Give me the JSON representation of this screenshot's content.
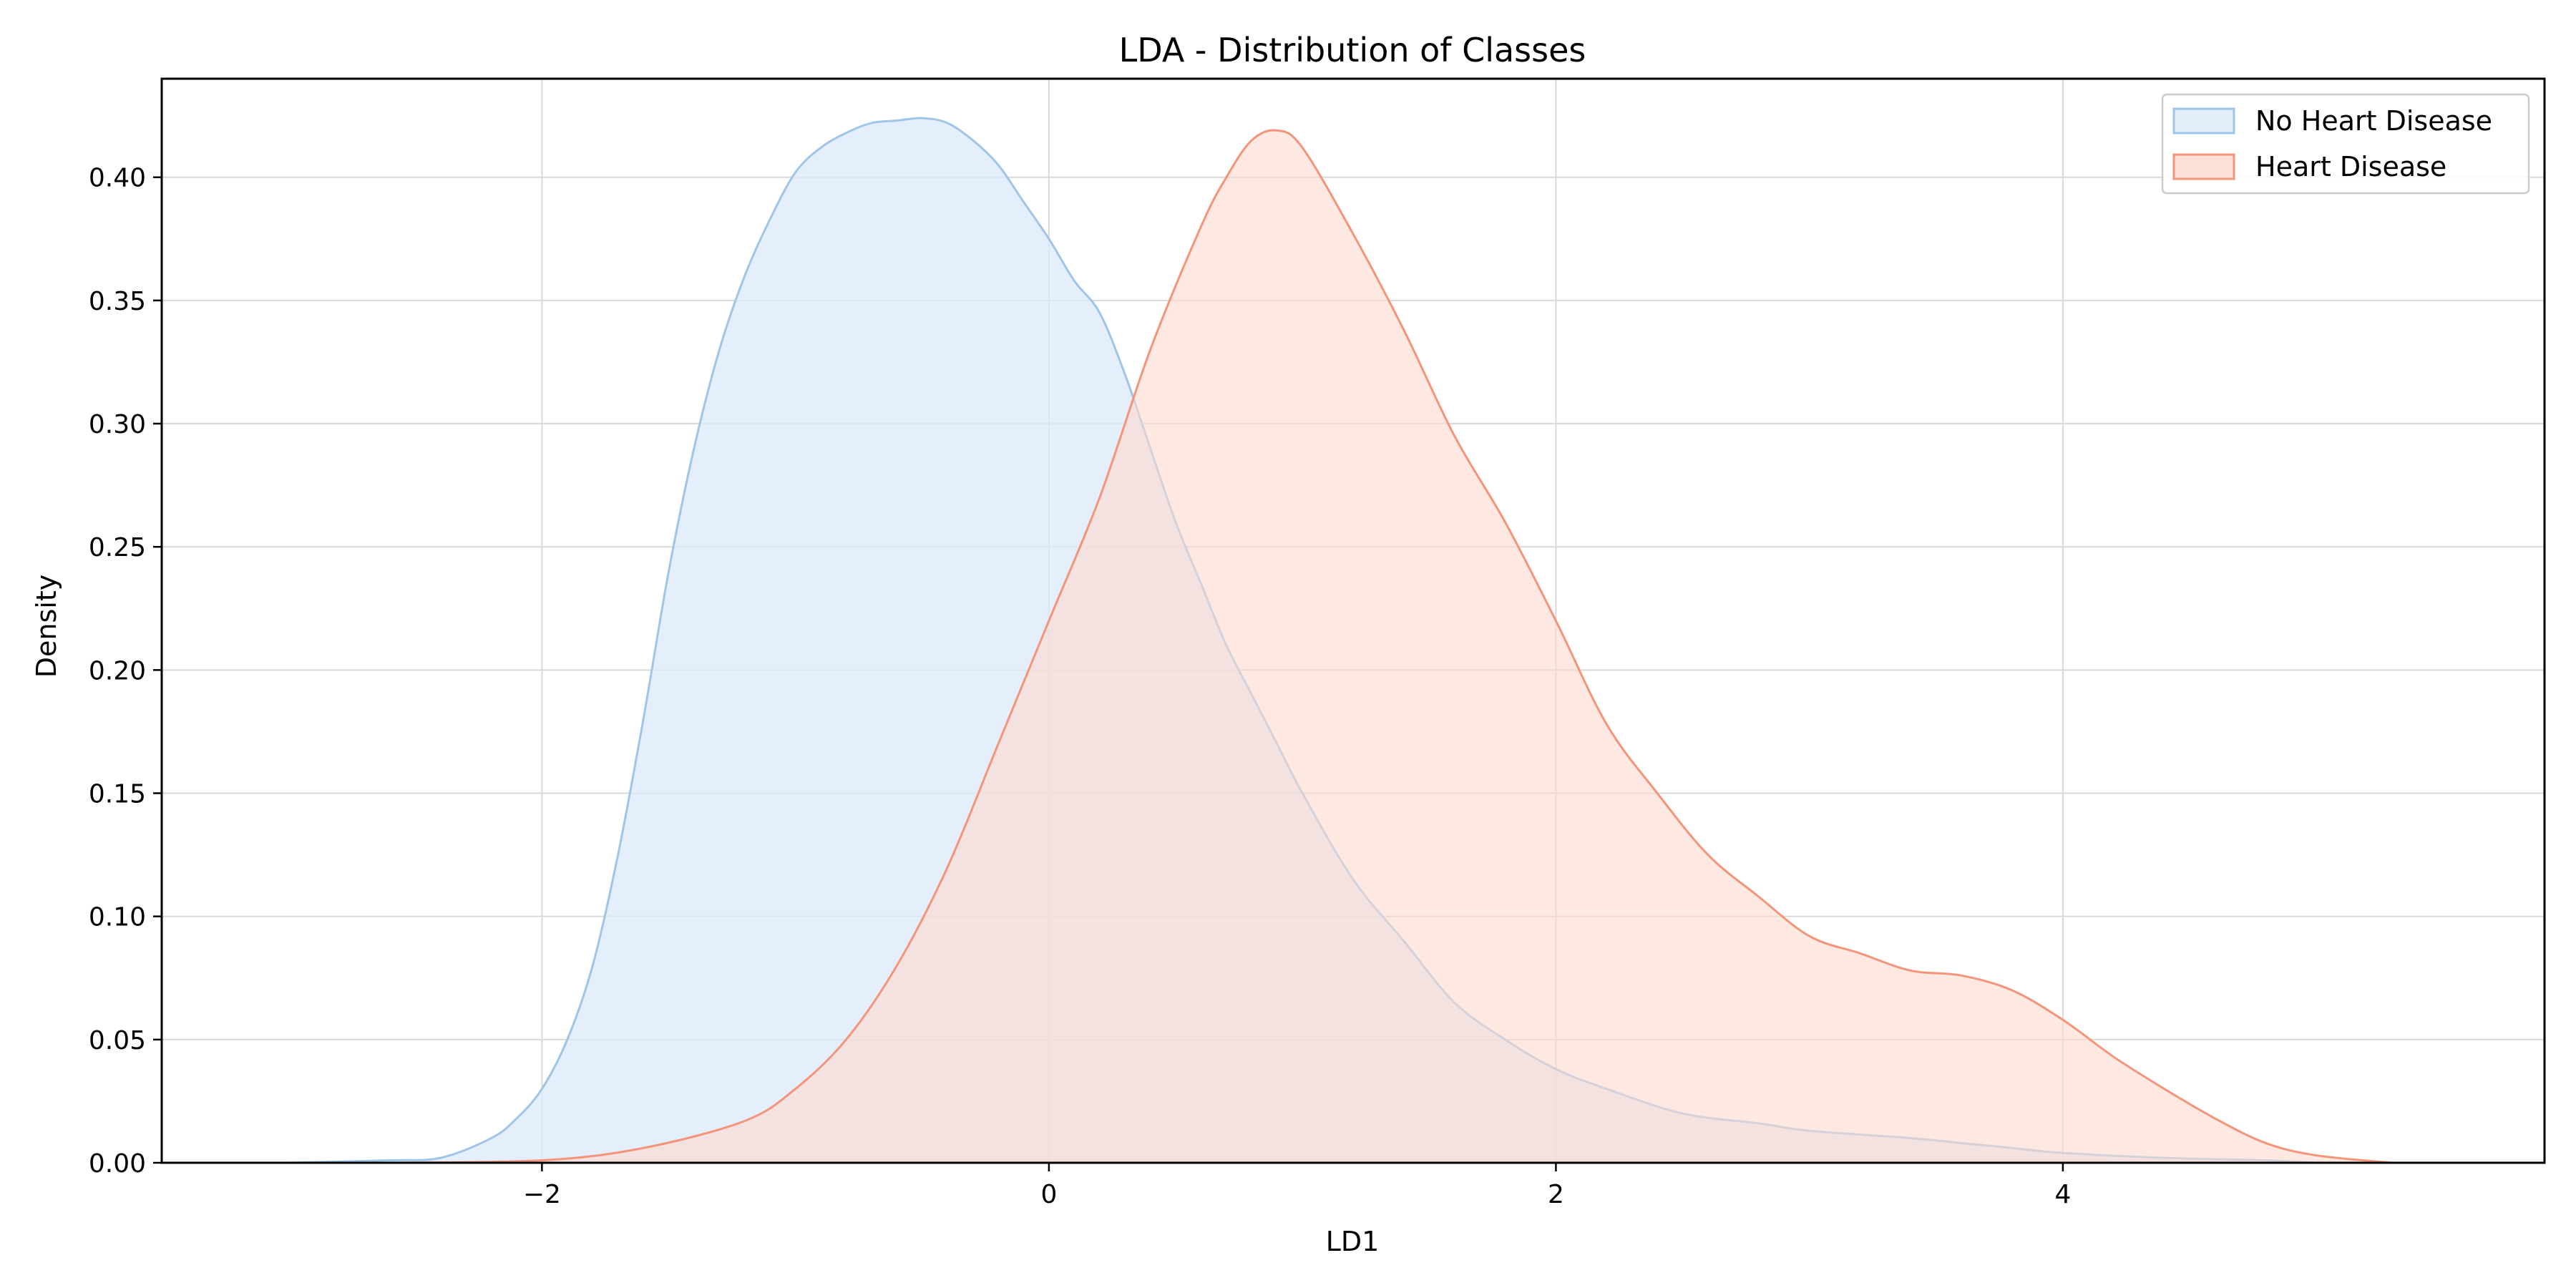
{
  "chart_data": {
    "type": "area",
    "title": "LDA - Distribution of Classes",
    "xlabel": "LD1",
    "ylabel": "Density",
    "xlim": [
      -3.5,
      5.9
    ],
    "ylim": [
      0,
      0.44
    ],
    "xticks": [
      -2,
      0,
      2,
      4
    ],
    "xtick_labels": [
      "−2",
      "0",
      "2",
      "4"
    ],
    "yticks": [
      0,
      0.05,
      0.1,
      0.15,
      0.2,
      0.25,
      0.3,
      0.35,
      0.4
    ],
    "ytick_labels": [
      "0.00",
      "0.05",
      "0.10",
      "0.15",
      "0.20",
      "0.25",
      "0.30",
      "0.35",
      "0.40"
    ],
    "grid": true,
    "legend_position": "top-right",
    "series": [
      {
        "name": "No Heart Disease",
        "line_color": "#9fc5e8",
        "fill_color": "#dceaf9",
        "x": [
          -3.0,
          -2.6,
          -2.4,
          -2.2,
          -2.1,
          -2.0,
          -1.9,
          -1.8,
          -1.7,
          -1.6,
          -1.5,
          -1.4,
          -1.3,
          -1.2,
          -1.1,
          -1.0,
          -0.9,
          -0.8,
          -0.7,
          -0.6,
          -0.5,
          -0.4,
          -0.3,
          -0.2,
          -0.1,
          0.0,
          0.1,
          0.2,
          0.3,
          0.4,
          0.5,
          0.6,
          0.7,
          0.8,
          0.9,
          1.0,
          1.2,
          1.4,
          1.6,
          1.8,
          2.0,
          2.2,
          2.5,
          2.8,
          3.0,
          3.4,
          3.6,
          3.8,
          4.0,
          4.4,
          4.8,
          5.0
        ],
        "y": [
          0.0,
          0.001,
          0.002,
          0.01,
          0.018,
          0.03,
          0.05,
          0.08,
          0.125,
          0.18,
          0.24,
          0.29,
          0.33,
          0.36,
          0.383,
          0.402,
          0.412,
          0.418,
          0.422,
          0.423,
          0.424,
          0.422,
          0.415,
          0.405,
          0.39,
          0.375,
          0.358,
          0.345,
          0.32,
          0.29,
          0.26,
          0.235,
          0.21,
          0.19,
          0.17,
          0.15,
          0.115,
          0.09,
          0.065,
          0.05,
          0.038,
          0.03,
          0.02,
          0.016,
          0.013,
          0.01,
          0.008,
          0.006,
          0.004,
          0.002,
          0.001,
          0.0
        ]
      },
      {
        "name": "Heart Disease",
        "line_color": "#f4947a",
        "fill_color": "#fcd9ce",
        "x": [
          -2.6,
          -2.0,
          -1.6,
          -1.2,
          -1.0,
          -0.8,
          -0.6,
          -0.4,
          -0.2,
          0.0,
          0.2,
          0.4,
          0.6,
          0.7,
          0.8,
          0.9,
          1.0,
          1.2,
          1.4,
          1.6,
          1.8,
          2.0,
          2.2,
          2.4,
          2.6,
          2.8,
          3.0,
          3.2,
          3.4,
          3.6,
          3.8,
          4.0,
          4.2,
          4.4,
          4.6,
          4.8,
          5.0,
          5.3
        ],
        "y": [
          0.0,
          0.001,
          0.006,
          0.017,
          0.03,
          0.05,
          0.08,
          0.12,
          0.17,
          0.22,
          0.27,
          0.33,
          0.38,
          0.4,
          0.415,
          0.419,
          0.412,
          0.377,
          0.338,
          0.295,
          0.26,
          0.22,
          0.178,
          0.15,
          0.125,
          0.108,
          0.092,
          0.085,
          0.078,
          0.076,
          0.07,
          0.058,
          0.043,
          0.03,
          0.018,
          0.008,
          0.003,
          0.0
        ]
      }
    ]
  }
}
